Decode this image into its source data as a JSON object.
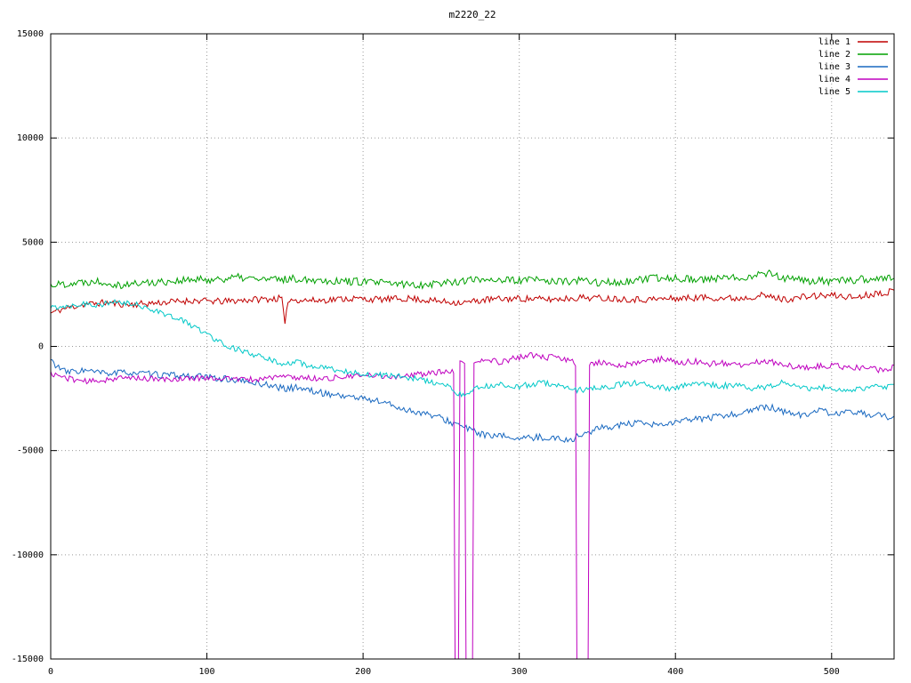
{
  "title": "m2220_22",
  "chart_data": {
    "type": "line",
    "title": "m2220_22",
    "xlabel": "",
    "ylabel": "",
    "xlim": [
      0,
      540
    ],
    "ylim": [
      -15000,
      15000
    ],
    "x_ticks": [
      0,
      100,
      200,
      300,
      400,
      500
    ],
    "y_ticks": [
      -15000,
      -10000,
      -5000,
      0,
      5000,
      10000,
      15000
    ],
    "grid": true,
    "grid_style": "dotted",
    "legend_position": "top-right",
    "background": "#ffffff",
    "series": [
      {
        "name": "line 1",
        "color": "#c00000",
        "noise": 160,
        "seed": 11,
        "anchors": [
          [
            0,
            1600
          ],
          [
            8,
            1800
          ],
          [
            20,
            2000
          ],
          [
            35,
            2100
          ],
          [
            50,
            2000
          ],
          [
            70,
            2100
          ],
          [
            90,
            2200
          ],
          [
            110,
            2150
          ],
          [
            130,
            2250
          ],
          [
            148,
            2300
          ],
          [
            150,
            950
          ],
          [
            152,
            2250
          ],
          [
            170,
            2200
          ],
          [
            190,
            2300
          ],
          [
            210,
            2250
          ],
          [
            230,
            2300
          ],
          [
            250,
            2150
          ],
          [
            265,
            2100
          ],
          [
            280,
            2250
          ],
          [
            300,
            2300
          ],
          [
            320,
            2250
          ],
          [
            340,
            2350
          ],
          [
            360,
            2300
          ],
          [
            380,
            2250
          ],
          [
            400,
            2300
          ],
          [
            420,
            2350
          ],
          [
            440,
            2300
          ],
          [
            455,
            2450
          ],
          [
            470,
            2250
          ],
          [
            485,
            2400
          ],
          [
            500,
            2450
          ],
          [
            515,
            2350
          ],
          [
            528,
            2550
          ],
          [
            540,
            2650
          ]
        ]
      },
      {
        "name": "line 2",
        "color": "#00a000",
        "noise": 190,
        "seed": 22,
        "anchors": [
          [
            0,
            2950
          ],
          [
            15,
            3050
          ],
          [
            30,
            3150
          ],
          [
            45,
            2950
          ],
          [
            60,
            3050
          ],
          [
            80,
            3150
          ],
          [
            100,
            3200
          ],
          [
            120,
            3300
          ],
          [
            140,
            3200
          ],
          [
            160,
            3250
          ],
          [
            180,
            3150
          ],
          [
            200,
            3100
          ],
          [
            220,
            3000
          ],
          [
            235,
            2950
          ],
          [
            250,
            3050
          ],
          [
            265,
            3150
          ],
          [
            280,
            3250
          ],
          [
            295,
            3150
          ],
          [
            310,
            3200
          ],
          [
            325,
            3100
          ],
          [
            340,
            3150
          ],
          [
            355,
            3050
          ],
          [
            370,
            3100
          ],
          [
            385,
            3250
          ],
          [
            400,
            3300
          ],
          [
            415,
            3200
          ],
          [
            430,
            3250
          ],
          [
            445,
            3350
          ],
          [
            460,
            3550
          ],
          [
            470,
            3250
          ],
          [
            485,
            3150
          ],
          [
            500,
            3100
          ],
          [
            515,
            3200
          ],
          [
            530,
            3250
          ],
          [
            540,
            3300
          ]
        ]
      },
      {
        "name": "line 3",
        "color": "#1868c0",
        "noise": 160,
        "seed": 33,
        "anchors": [
          [
            0,
            -650
          ],
          [
            4,
            -950
          ],
          [
            10,
            -1250
          ],
          [
            20,
            -1150
          ],
          [
            35,
            -1300
          ],
          [
            50,
            -1250
          ],
          [
            65,
            -1350
          ],
          [
            80,
            -1400
          ],
          [
            95,
            -1450
          ],
          [
            110,
            -1550
          ],
          [
            125,
            -1700
          ],
          [
            140,
            -1850
          ],
          [
            150,
            -2050
          ],
          [
            158,
            -1950
          ],
          [
            170,
            -2200
          ],
          [
            185,
            -2350
          ],
          [
            200,
            -2500
          ],
          [
            212,
            -2650
          ],
          [
            225,
            -3000
          ],
          [
            238,
            -3200
          ],
          [
            250,
            -3450
          ],
          [
            262,
            -3800
          ],
          [
            272,
            -4100
          ],
          [
            282,
            -4350
          ],
          [
            292,
            -4300
          ],
          [
            302,
            -4450
          ],
          [
            312,
            -4350
          ],
          [
            322,
            -4400
          ],
          [
            332,
            -4500
          ],
          [
            340,
            -4250
          ],
          [
            350,
            -3950
          ],
          [
            362,
            -3800
          ],
          [
            375,
            -3700
          ],
          [
            388,
            -3800
          ],
          [
            400,
            -3650
          ],
          [
            412,
            -3500
          ],
          [
            425,
            -3400
          ],
          [
            438,
            -3250
          ],
          [
            450,
            -3050
          ],
          [
            460,
            -2900
          ],
          [
            470,
            -3150
          ],
          [
            480,
            -3300
          ],
          [
            492,
            -3100
          ],
          [
            504,
            -3250
          ],
          [
            516,
            -3150
          ],
          [
            528,
            -3300
          ],
          [
            540,
            -3450
          ]
        ]
      },
      {
        "name": "line 4",
        "color": "#bf00bf",
        "noise": 140,
        "seed": 44,
        "anchors": [
          [
            0,
            -1300
          ],
          [
            12,
            -1550
          ],
          [
            25,
            -1700
          ],
          [
            40,
            -1550
          ],
          [
            55,
            -1500
          ],
          [
            70,
            -1600
          ],
          [
            85,
            -1550
          ],
          [
            100,
            -1500
          ],
          [
            115,
            -1550
          ],
          [
            130,
            -1600
          ],
          [
            145,
            -1450
          ],
          [
            160,
            -1500
          ],
          [
            175,
            -1550
          ],
          [
            190,
            -1450
          ],
          [
            205,
            -1400
          ],
          [
            220,
            -1450
          ],
          [
            235,
            -1350
          ],
          [
            248,
            -1250
          ],
          [
            256,
            -1200
          ],
          [
            258,
            -1300
          ],
          [
            259,
            -16500
          ],
          [
            261,
            -16500
          ],
          [
            262,
            -700
          ],
          [
            265,
            -800
          ],
          [
            266,
            -16500
          ],
          [
            270,
            -16500
          ],
          [
            271,
            -800
          ],
          [
            278,
            -650
          ],
          [
            288,
            -750
          ],
          [
            298,
            -550
          ],
          [
            308,
            -400
          ],
          [
            316,
            -550
          ],
          [
            324,
            -500
          ],
          [
            330,
            -650
          ],
          [
            336,
            -800
          ],
          [
            337,
            -16500
          ],
          [
            344,
            -16500
          ],
          [
            345,
            -900
          ],
          [
            352,
            -750
          ],
          [
            362,
            -950
          ],
          [
            372,
            -850
          ],
          [
            382,
            -700
          ],
          [
            392,
            -600
          ],
          [
            402,
            -800
          ],
          [
            412,
            -700
          ],
          [
            422,
            -850
          ],
          [
            432,
            -800
          ],
          [
            442,
            -950
          ],
          [
            452,
            -700
          ],
          [
            462,
            -750
          ],
          [
            472,
            -900
          ],
          [
            482,
            -1050
          ],
          [
            492,
            -950
          ],
          [
            502,
            -900
          ],
          [
            512,
            -1050
          ],
          [
            522,
            -1000
          ],
          [
            532,
            -1150
          ],
          [
            540,
            -1000
          ]
        ]
      },
      {
        "name": "line 5",
        "color": "#00c8c8",
        "noise": 140,
        "seed": 55,
        "anchors": [
          [
            0,
            1850
          ],
          [
            10,
            1950
          ],
          [
            20,
            2050
          ],
          [
            30,
            2000
          ],
          [
            40,
            2100
          ],
          [
            50,
            2050
          ],
          [
            58,
            1950
          ],
          [
            66,
            1750
          ],
          [
            75,
            1500
          ],
          [
            84,
            1250
          ],
          [
            93,
            900
          ],
          [
            102,
            500
          ],
          [
            110,
            150
          ],
          [
            118,
            -100
          ],
          [
            127,
            -350
          ],
          [
            136,
            -550
          ],
          [
            145,
            -750
          ],
          [
            152,
            -850
          ],
          [
            158,
            -750
          ],
          [
            166,
            -950
          ],
          [
            175,
            -1050
          ],
          [
            185,
            -1150
          ],
          [
            195,
            -1250
          ],
          [
            205,
            -1350
          ],
          [
            215,
            -1400
          ],
          [
            225,
            -1450
          ],
          [
            235,
            -1550
          ],
          [
            245,
            -1750
          ],
          [
            255,
            -1950
          ],
          [
            260,
            -2200
          ],
          [
            264,
            -2400
          ],
          [
            270,
            -2100
          ],
          [
            278,
            -1900
          ],
          [
            288,
            -1850
          ],
          [
            298,
            -1950
          ],
          [
            308,
            -1800
          ],
          [
            318,
            -1750
          ],
          [
            328,
            -1950
          ],
          [
            338,
            -2100
          ],
          [
            348,
            -2000
          ],
          [
            358,
            -1900
          ],
          [
            368,
            -1800
          ],
          [
            378,
            -1750
          ],
          [
            388,
            -1950
          ],
          [
            398,
            -2050
          ],
          [
            408,
            -1850
          ],
          [
            418,
            -1750
          ],
          [
            428,
            -1900
          ],
          [
            438,
            -1850
          ],
          [
            448,
            -2050
          ],
          [
            458,
            -1950
          ],
          [
            468,
            -1750
          ],
          [
            478,
            -1850
          ],
          [
            488,
            -2050
          ],
          [
            498,
            -1950
          ],
          [
            508,
            -2150
          ],
          [
            518,
            -2050
          ],
          [
            528,
            -1950
          ],
          [
            540,
            -1900
          ]
        ]
      }
    ]
  }
}
